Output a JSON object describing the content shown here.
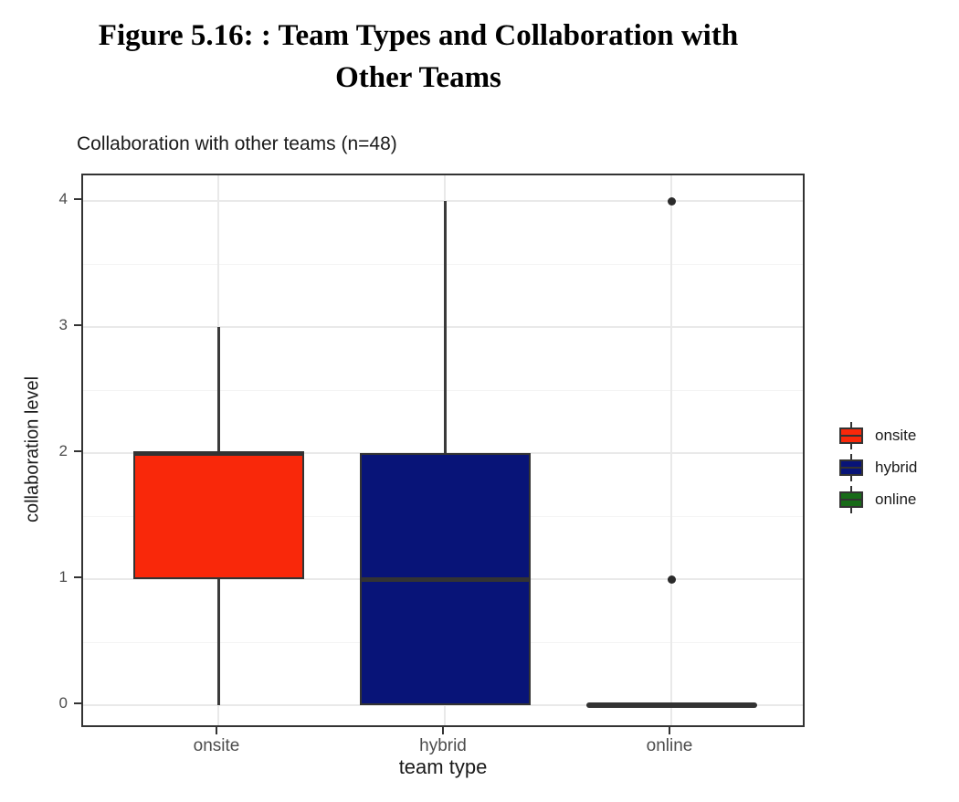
{
  "figure_title": {
    "line1": "Figure 5.16: : Team Types and Collaboration with",
    "line2": "Other Teams"
  },
  "chart_data": {
    "type": "boxplot",
    "title": "Collaboration with other teams (n=48)",
    "xlabel": "team type",
    "ylabel": "collaboration level",
    "categories": [
      "onsite",
      "hybrid",
      "online"
    ],
    "y_ticks": [
      0,
      1,
      2,
      3,
      4
    ],
    "ylim": [
      -0.17,
      4.2
    ],
    "grid": {
      "major": true,
      "minor": true
    },
    "legend_position": "right",
    "legend": [
      {
        "label": "onsite",
        "color": "#F9280A"
      },
      {
        "label": "hybrid",
        "color": "#081478"
      },
      {
        "label": "online",
        "color": "#186B18"
      }
    ],
    "series": [
      {
        "name": "onsite",
        "color": "#F9280A",
        "whisker_low": 0,
        "q1": 1,
        "median": 2,
        "q3": 2,
        "whisker_high": 3,
        "outliers": []
      },
      {
        "name": "hybrid",
        "color": "#081478",
        "whisker_low": 0,
        "q1": 0,
        "median": 1,
        "q3": 2,
        "whisker_high": 4,
        "outliers": []
      },
      {
        "name": "online",
        "color": "#186B18",
        "whisker_low": 0,
        "q1": 0,
        "median": 0,
        "q3": 0,
        "whisker_high": 0,
        "outliers": [
          4,
          1
        ]
      }
    ]
  },
  "colors": {
    "panel_border": "#333333",
    "box_border": "#333333",
    "whisker": "#3A3A3A",
    "median": "#333333",
    "outlier": "#2B2B2B",
    "grid_major": "#E9E9E9",
    "grid_minor": "#F4F4F4",
    "tick_mark": "#333333",
    "tick_label": "#4D4D4D"
  }
}
